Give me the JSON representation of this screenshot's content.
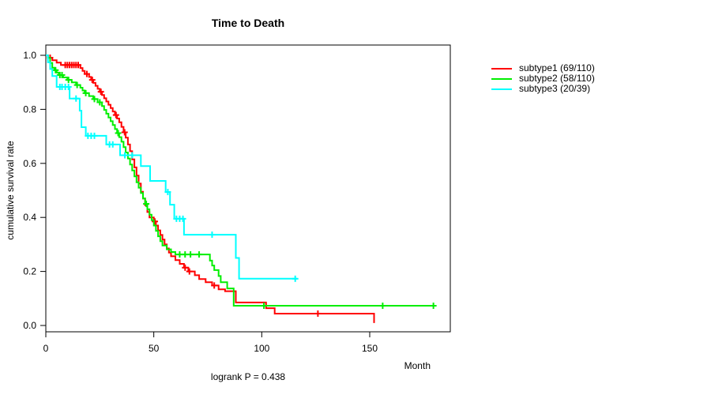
{
  "chart_data": {
    "type": "line",
    "subtype": "kaplan-meier-step",
    "title": "Time to Death",
    "xlabel": "Month",
    "ylabel": "cumulative survival rate",
    "annotation": "logrank P = 0.438",
    "xlim": [
      0,
      187
    ],
    "ylim": [
      0,
      1
    ],
    "xticks": [
      "0",
      "50",
      "100",
      "150"
    ],
    "yticks": [
      "0.0",
      "0.2",
      "0.4",
      "0.6",
      "0.8",
      "1.0"
    ],
    "grid": false,
    "legend_position": "right-outside",
    "series": [
      {
        "name": "subtype1 (69/110)",
        "color": "#ff0000",
        "end": 152,
        "steps": [
          [
            0,
            1.0
          ],
          [
            1,
            0.991
          ],
          [
            3,
            0.982
          ],
          [
            5,
            0.973
          ],
          [
            7,
            0.964
          ],
          [
            16,
            0.953
          ],
          [
            17,
            0.942
          ],
          [
            18,
            0.931
          ],
          [
            20,
            0.92
          ],
          [
            21,
            0.909
          ],
          [
            22,
            0.898
          ],
          [
            23,
            0.887
          ],
          [
            24,
            0.876
          ],
          [
            25,
            0.865
          ],
          [
            26,
            0.853
          ],
          [
            27,
            0.841
          ],
          [
            28,
            0.829
          ],
          [
            29,
            0.817
          ],
          [
            30,
            0.805
          ],
          [
            31,
            0.792
          ],
          [
            32,
            0.779
          ],
          [
            33,
            0.766
          ],
          [
            34,
            0.752
          ],
          [
            35,
            0.735
          ],
          [
            36,
            0.715
          ],
          [
            37,
            0.695
          ],
          [
            38,
            0.67
          ],
          [
            39,
            0.645
          ],
          [
            40,
            0.615
          ],
          [
            41,
            0.585
          ],
          [
            42,
            0.555
          ],
          [
            43,
            0.525
          ],
          [
            44,
            0.495
          ],
          [
            45,
            0.47
          ],
          [
            46,
            0.445
          ],
          [
            47,
            0.42
          ],
          [
            48,
            0.4
          ],
          [
            50,
            0.385
          ],
          [
            51,
            0.37
          ],
          [
            52,
            0.352
          ],
          [
            53,
            0.335
          ],
          [
            54,
            0.318
          ],
          [
            55,
            0.3
          ],
          [
            56,
            0.285
          ],
          [
            57,
            0.27
          ],
          [
            58,
            0.256
          ],
          [
            60,
            0.242
          ],
          [
            62,
            0.228
          ],
          [
            64,
            0.214
          ],
          [
            66,
            0.2
          ],
          [
            69,
            0.186
          ],
          [
            71,
            0.172
          ],
          [
            74,
            0.16
          ],
          [
            77,
            0.148
          ],
          [
            80,
            0.134
          ],
          [
            83,
            0.127
          ],
          [
            88,
            0.085
          ],
          [
            102,
            0.064
          ],
          [
            106,
            0.044
          ],
          [
            152,
            0.009
          ]
        ],
        "censors": [
          [
            2,
            0.991
          ],
          [
            9,
            0.964
          ],
          [
            10,
            0.964
          ],
          [
            11,
            0.964
          ],
          [
            12,
            0.964
          ],
          [
            13,
            0.964
          ],
          [
            14,
            0.964
          ],
          [
            15,
            0.964
          ],
          [
            19,
            0.931
          ],
          [
            21.5,
            0.909
          ],
          [
            25.5,
            0.865
          ],
          [
            32.5,
            0.779
          ],
          [
            36.5,
            0.715
          ],
          [
            50.5,
            0.385
          ],
          [
            64.5,
            0.214
          ],
          [
            66.5,
            0.2
          ],
          [
            78,
            0.148
          ],
          [
            126,
            0.044
          ]
        ]
      },
      {
        "name": "subtype2 (58/110)",
        "color": "#00ee00",
        "end": 180,
        "steps": [
          [
            0,
            1.0
          ],
          [
            1,
            0.991
          ],
          [
            2,
            0.972
          ],
          [
            3,
            0.954
          ],
          [
            4,
            0.945
          ],
          [
            5,
            0.936
          ],
          [
            6,
            0.927
          ],
          [
            8,
            0.918
          ],
          [
            10,
            0.909
          ],
          [
            12,
            0.9
          ],
          [
            14,
            0.89
          ],
          [
            16,
            0.88
          ],
          [
            17,
            0.87
          ],
          [
            18,
            0.86
          ],
          [
            20,
            0.849
          ],
          [
            22,
            0.838
          ],
          [
            24,
            0.826
          ],
          [
            26,
            0.812
          ],
          [
            27,
            0.798
          ],
          [
            28,
            0.784
          ],
          [
            29,
            0.77
          ],
          [
            30,
            0.756
          ],
          [
            31,
            0.742
          ],
          [
            32,
            0.727
          ],
          [
            33,
            0.712
          ],
          [
            34,
            0.697
          ],
          [
            35,
            0.68
          ],
          [
            36,
            0.66
          ],
          [
            37,
            0.64
          ],
          [
            38,
            0.618
          ],
          [
            39,
            0.596
          ],
          [
            40,
            0.574
          ],
          [
            41,
            0.552
          ],
          [
            42,
            0.53
          ],
          [
            43,
            0.51
          ],
          [
            44,
            0.49
          ],
          [
            45,
            0.47
          ],
          [
            46,
            0.45
          ],
          [
            47,
            0.43
          ],
          [
            48,
            0.41
          ],
          [
            49,
            0.39
          ],
          [
            50,
            0.37
          ],
          [
            51,
            0.35
          ],
          [
            52,
            0.33
          ],
          [
            53,
            0.312
          ],
          [
            54,
            0.296
          ],
          [
            56,
            0.282
          ],
          [
            58,
            0.272
          ],
          [
            60,
            0.263
          ],
          [
            76,
            0.24
          ],
          [
            77,
            0.222
          ],
          [
            78,
            0.205
          ],
          [
            80,
            0.183
          ],
          [
            81,
            0.16
          ],
          [
            84,
            0.137
          ],
          [
            87,
            0.073
          ]
        ],
        "censors": [
          [
            4.5,
            0.945
          ],
          [
            6.5,
            0.927
          ],
          [
            7.5,
            0.927
          ],
          [
            10.5,
            0.909
          ],
          [
            14.5,
            0.89
          ],
          [
            18.5,
            0.86
          ],
          [
            22.5,
            0.838
          ],
          [
            25,
            0.826
          ],
          [
            33.5,
            0.712
          ],
          [
            46.5,
            0.45
          ],
          [
            62,
            0.263
          ],
          [
            64.5,
            0.263
          ],
          [
            67,
            0.263
          ],
          [
            71,
            0.263
          ],
          [
            101,
            0.073
          ],
          [
            156,
            0.073
          ],
          [
            179.5,
            0.073
          ]
        ]
      },
      {
        "name": "subtype3 (20/39)",
        "color": "#00ffff",
        "end": 116.5,
        "steps": [
          [
            0,
            1.0
          ],
          [
            1,
            0.974
          ],
          [
            2,
            0.949
          ],
          [
            3,
            0.923
          ],
          [
            5,
            0.883
          ],
          [
            11,
            0.84
          ],
          [
            15.7,
            0.795
          ],
          [
            16.5,
            0.734
          ],
          [
            18.5,
            0.702
          ],
          [
            28,
            0.67
          ],
          [
            34.4,
            0.63
          ],
          [
            44,
            0.59
          ],
          [
            48.3,
            0.535
          ],
          [
            55.5,
            0.494
          ],
          [
            57.5,
            0.447
          ],
          [
            59.5,
            0.395
          ],
          [
            64,
            0.336
          ],
          [
            88,
            0.25
          ],
          [
            89.5,
            0.173
          ]
        ],
        "censors": [
          [
            6.5,
            0.883
          ],
          [
            7.5,
            0.883
          ],
          [
            9,
            0.883
          ],
          [
            10.5,
            0.883
          ],
          [
            14,
            0.84
          ],
          [
            19.5,
            0.702
          ],
          [
            21,
            0.702
          ],
          [
            22.5,
            0.702
          ],
          [
            29.5,
            0.67
          ],
          [
            31,
            0.67
          ],
          [
            36.6,
            0.63
          ],
          [
            40,
            0.63
          ],
          [
            56.5,
            0.494
          ],
          [
            60.5,
            0.395
          ],
          [
            62,
            0.395
          ],
          [
            63.5,
            0.395
          ],
          [
            77,
            0.336
          ],
          [
            115.5,
            0.173
          ]
        ]
      }
    ]
  }
}
